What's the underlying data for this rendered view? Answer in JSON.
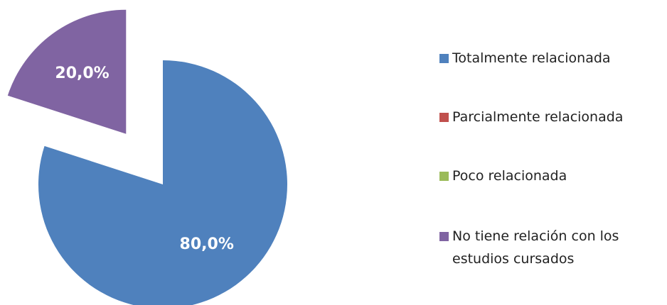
{
  "chart_data": {
    "type": "pie",
    "categories": [
      "Totalmente relacionada",
      "Parcialmente relacionada",
      "Poco relacionada",
      "No tiene relación con los estudios cursados"
    ],
    "values": [
      80,
      0,
      0,
      20
    ],
    "value_labels": [
      "80,0%",
      null,
      null,
      "20,0%"
    ],
    "colors": [
      "#4f81bd",
      "#c0504d",
      "#9bbb59",
      "#8064a2"
    ],
    "legend": "right"
  }
}
